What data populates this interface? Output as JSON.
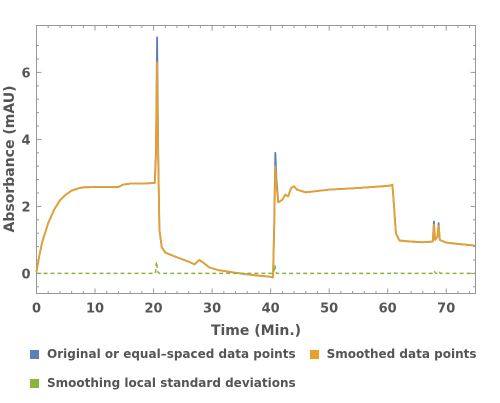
{
  "chart_data": {
    "type": "line",
    "xlabel": "Time  (Min.)",
    "ylabel": "Absorbance  (mAU)",
    "xlim": [
      0,
      75
    ],
    "ylim": [
      -0.6,
      7.4
    ],
    "x_ticks": [
      0,
      10,
      20,
      30,
      40,
      50,
      60,
      70
    ],
    "y_ticks": [
      0,
      2,
      4,
      6
    ],
    "grid": false,
    "legend_position": "bottom",
    "series": [
      {
        "name": "Original or equal–spaced data points",
        "color": "#5b7fbd",
        "style": "solid",
        "points": [
          [
            0,
            0.05
          ],
          [
            0.5,
            0.55
          ],
          [
            1,
            0.95
          ],
          [
            2,
            1.5
          ],
          [
            3,
            1.9
          ],
          [
            4,
            2.18
          ],
          [
            5,
            2.35
          ],
          [
            6,
            2.47
          ],
          [
            7,
            2.53
          ],
          [
            8,
            2.57
          ],
          [
            10,
            2.58
          ],
          [
            12,
            2.58
          ],
          [
            14,
            2.58
          ],
          [
            14.8,
            2.65
          ],
          [
            16,
            2.68
          ],
          [
            18,
            2.68
          ],
          [
            20.2,
            2.7
          ],
          [
            20.4,
            3.6
          ],
          [
            20.6,
            7.05
          ],
          [
            20.8,
            3.5
          ],
          [
            21.0,
            1.3
          ],
          [
            21.4,
            0.78
          ],
          [
            22,
            0.62
          ],
          [
            24,
            0.48
          ],
          [
            26,
            0.35
          ],
          [
            27,
            0.27
          ],
          [
            27.8,
            0.4
          ],
          [
            28.5,
            0.32
          ],
          [
            29.5,
            0.18
          ],
          [
            31,
            0.1
          ],
          [
            34,
            0.02
          ],
          [
            37,
            -0.05
          ],
          [
            40,
            -0.1
          ],
          [
            40.4,
            -0.12
          ],
          [
            40.6,
            1.4
          ],
          [
            40.8,
            3.6
          ],
          [
            41.0,
            2.8
          ],
          [
            41.3,
            2.12
          ],
          [
            42,
            2.2
          ],
          [
            42.5,
            2.35
          ],
          [
            43,
            2.3
          ],
          [
            43.5,
            2.55
          ],
          [
            44,
            2.6
          ],
          [
            44.5,
            2.5
          ],
          [
            46,
            2.42
          ],
          [
            48,
            2.46
          ],
          [
            50,
            2.5
          ],
          [
            55,
            2.55
          ],
          [
            59,
            2.6
          ],
          [
            60.4,
            2.62
          ],
          [
            60.8,
            2.65
          ],
          [
            61.0,
            2.2
          ],
          [
            61.4,
            1.2
          ],
          [
            62,
            0.98
          ],
          [
            64,
            0.95
          ],
          [
            66,
            0.93
          ],
          [
            67.7,
            0.95
          ],
          [
            67.9,
            1.55
          ],
          [
            68.1,
            1.0
          ],
          [
            68.5,
            1.1
          ],
          [
            68.7,
            1.5
          ],
          [
            68.9,
            1.0
          ],
          [
            70,
            0.92
          ],
          [
            72,
            0.88
          ],
          [
            75,
            0.83
          ]
        ]
      },
      {
        "name": "Smoothed data points",
        "color": "#e8a02c",
        "style": "solid",
        "points": [
          [
            0,
            0.05
          ],
          [
            0.5,
            0.55
          ],
          [
            1,
            0.95
          ],
          [
            2,
            1.5
          ],
          [
            3,
            1.9
          ],
          [
            4,
            2.18
          ],
          [
            5,
            2.35
          ],
          [
            6,
            2.47
          ],
          [
            7,
            2.53
          ],
          [
            8,
            2.57
          ],
          [
            10,
            2.58
          ],
          [
            12,
            2.58
          ],
          [
            14,
            2.58
          ],
          [
            14.8,
            2.65
          ],
          [
            16,
            2.68
          ],
          [
            18,
            2.68
          ],
          [
            20.2,
            2.7
          ],
          [
            20.4,
            3.4
          ],
          [
            20.6,
            6.3
          ],
          [
            20.8,
            3.3
          ],
          [
            21.0,
            1.3
          ],
          [
            21.4,
            0.78
          ],
          [
            22,
            0.62
          ],
          [
            24,
            0.48
          ],
          [
            26,
            0.35
          ],
          [
            27,
            0.27
          ],
          [
            27.8,
            0.4
          ],
          [
            28.5,
            0.32
          ],
          [
            29.5,
            0.18
          ],
          [
            31,
            0.1
          ],
          [
            34,
            0.02
          ],
          [
            37,
            -0.05
          ],
          [
            40,
            -0.1
          ],
          [
            40.4,
            -0.12
          ],
          [
            40.6,
            1.2
          ],
          [
            40.8,
            3.2
          ],
          [
            41.0,
            2.6
          ],
          [
            41.3,
            2.12
          ],
          [
            42,
            2.2
          ],
          [
            42.5,
            2.35
          ],
          [
            43,
            2.3
          ],
          [
            43.5,
            2.55
          ],
          [
            44,
            2.6
          ],
          [
            44.5,
            2.5
          ],
          [
            46,
            2.42
          ],
          [
            48,
            2.46
          ],
          [
            50,
            2.5
          ],
          [
            55,
            2.55
          ],
          [
            59,
            2.6
          ],
          [
            60.4,
            2.62
          ],
          [
            60.8,
            2.65
          ],
          [
            61.0,
            2.2
          ],
          [
            61.4,
            1.2
          ],
          [
            62,
            0.98
          ],
          [
            64,
            0.95
          ],
          [
            66,
            0.93
          ],
          [
            67.7,
            0.95
          ],
          [
            67.9,
            1.45
          ],
          [
            68.1,
            1.0
          ],
          [
            68.5,
            1.1
          ],
          [
            68.7,
            1.42
          ],
          [
            68.9,
            1.0
          ],
          [
            70,
            0.92
          ],
          [
            72,
            0.88
          ],
          [
            75,
            0.83
          ]
        ]
      },
      {
        "name": "Smoothing local standard deviations",
        "color": "#8bb43c",
        "style": "dashed",
        "points": [
          [
            0,
            0
          ],
          [
            20.3,
            0
          ],
          [
            20.5,
            0.35
          ],
          [
            20.7,
            0.05
          ],
          [
            21,
            0
          ],
          [
            40.5,
            0
          ],
          [
            40.7,
            0.25
          ],
          [
            41,
            0
          ],
          [
            60.7,
            0
          ],
          [
            61,
            0.03
          ],
          [
            61.3,
            0
          ],
          [
            67.8,
            0
          ],
          [
            68,
            0.06
          ],
          [
            68.2,
            0
          ],
          [
            68.6,
            0
          ],
          [
            68.8,
            0.05
          ],
          [
            69,
            0
          ],
          [
            75,
            0
          ]
        ]
      }
    ]
  }
}
